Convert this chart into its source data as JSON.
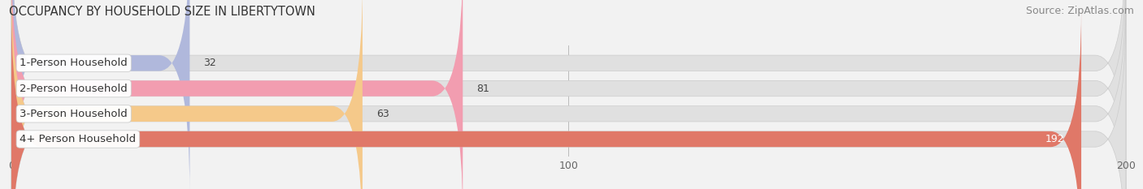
{
  "title": "OCCUPANCY BY HOUSEHOLD SIZE IN LIBERTYTOWN",
  "source": "Source: ZipAtlas.com",
  "categories": [
    "1-Person Household",
    "2-Person Household",
    "3-Person Household",
    "4+ Person Household"
  ],
  "values": [
    32,
    81,
    63,
    192
  ],
  "bar_colors": [
    "#b0b8dc",
    "#f29db0",
    "#f5c98a",
    "#e07868"
  ],
  "xlim": [
    0,
    200
  ],
  "xticks": [
    0,
    100,
    200
  ],
  "background_color": "#f2f2f2",
  "bar_bg_color": "#e0e0e0",
  "title_fontsize": 10.5,
  "source_fontsize": 9,
  "label_fontsize": 9.5,
  "value_fontsize": 9,
  "tick_fontsize": 9,
  "bar_height": 0.62,
  "figsize": [
    14.06,
    2.33
  ]
}
